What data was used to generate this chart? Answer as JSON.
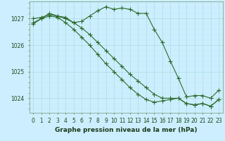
{
  "x": [
    0,
    1,
    2,
    3,
    4,
    5,
    6,
    7,
    8,
    9,
    10,
    11,
    12,
    13,
    14,
    15,
    16,
    17,
    18,
    19,
    20,
    21,
    22,
    23
  ],
  "line1": [
    1026.8,
    1027.0,
    1027.2,
    1027.1,
    1027.05,
    1026.85,
    1026.9,
    1027.1,
    1027.3,
    1027.45,
    1027.35,
    1027.4,
    1027.35,
    1027.2,
    1027.2,
    1026.6,
    1026.1,
    1025.4,
    1024.75,
    1024.05,
    1024.1,
    1024.1,
    1024.0,
    1024.3
  ],
  "line2": [
    1027.0,
    1027.05,
    1027.15,
    1027.1,
    1027.0,
    1026.85,
    1026.65,
    1026.4,
    1026.1,
    1025.8,
    1025.5,
    1025.2,
    1024.9,
    1024.65,
    1024.4,
    1024.15,
    1024.0,
    1024.0,
    1024.0,
    1023.8,
    1023.75,
    1023.8,
    1023.7,
    1023.95
  ],
  "line3": [
    1026.85,
    1027.0,
    1027.1,
    1027.05,
    1026.85,
    1026.6,
    1026.3,
    1026.0,
    1025.65,
    1025.3,
    1025.0,
    1024.7,
    1024.4,
    1024.15,
    1023.95,
    1023.85,
    1023.9,
    1023.95,
    1024.0,
    1023.8,
    1023.75,
    1023.8,
    1023.7,
    1023.95
  ],
  "bg_color": "#cceeff",
  "grid_color_major": "#aadddd",
  "grid_color_minor": "#bbeeee",
  "line_color": "#2d6a2d",
  "ylabel_ticks": [
    1024,
    1025,
    1026,
    1027
  ],
  "xlabel_ticks": [
    0,
    1,
    2,
    3,
    4,
    5,
    6,
    7,
    8,
    9,
    10,
    11,
    12,
    13,
    14,
    15,
    16,
    17,
    18,
    19,
    20,
    21,
    22,
    23
  ],
  "xlabel": "Graphe pression niveau de la mer (hPa)",
  "ylim": [
    1023.45,
    1027.65
  ],
  "xlim": [
    -0.5,
    23.5
  ],
  "marker": "+",
  "markersize": 4,
  "linewidth": 0.8,
  "xlabel_fontsize": 6.5,
  "tick_fontsize": 5.5
}
